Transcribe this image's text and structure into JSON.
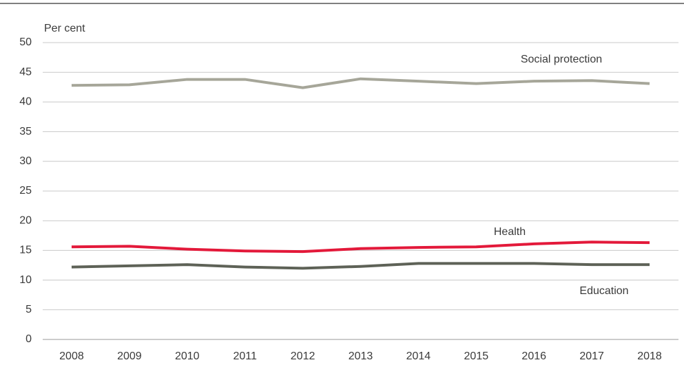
{
  "chart_data": {
    "type": "line",
    "y_label": "Per cent",
    "categories": [
      "2008",
      "2009",
      "2010",
      "2011",
      "2012",
      "2013",
      "2014",
      "2015",
      "2016",
      "2017",
      "2018"
    ],
    "series": [
      {
        "name": "Social protection",
        "color": "#a6a699",
        "values": [
          42.8,
          42.9,
          43.8,
          43.8,
          42.4,
          43.9,
          43.5,
          43.1,
          43.5,
          43.6,
          43.1
        ]
      },
      {
        "name": "Health",
        "color": "#e3193a",
        "values": [
          15.6,
          15.7,
          15.2,
          14.9,
          14.8,
          15.3,
          15.5,
          15.6,
          16.1,
          16.4,
          16.3
        ]
      },
      {
        "name": "Education",
        "color": "#5e6257",
        "values": [
          12.2,
          12.4,
          12.6,
          12.2,
          12.0,
          12.3,
          12.8,
          12.8,
          12.8,
          12.6,
          12.6
        ]
      }
    ],
    "ylim": [
      0,
      50
    ],
    "yticks": [
      0,
      5,
      10,
      15,
      20,
      25,
      30,
      35,
      40,
      45,
      50
    ],
    "grid": true
  }
}
